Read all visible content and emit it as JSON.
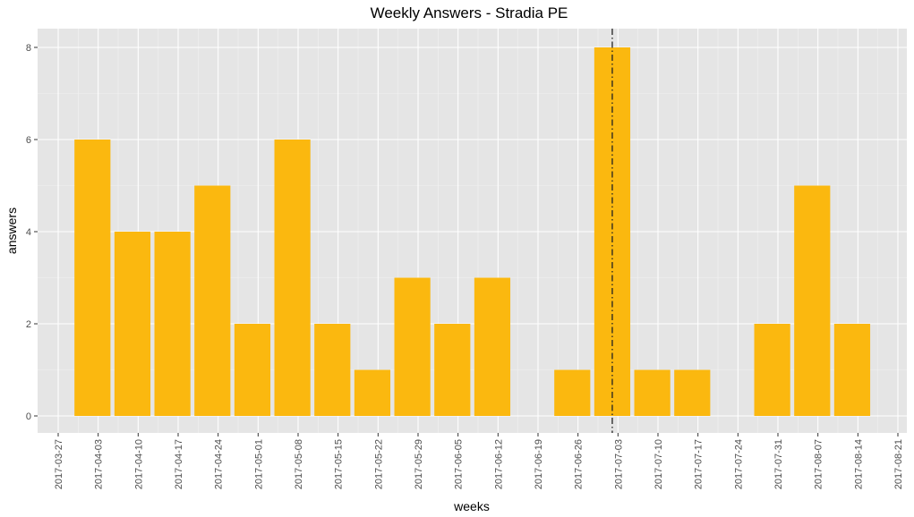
{
  "chart_data": {
    "type": "bar",
    "title": "Weekly Answers - Stradia PE",
    "xlabel": "weeks",
    "ylabel": "answers",
    "ylim": [
      0,
      8
    ],
    "y_ticks": [
      0,
      2,
      4,
      6,
      8
    ],
    "x_ticks": [
      "2017-03-27",
      "2017-04-03",
      "2017-04-10",
      "2017-04-17",
      "2017-04-24",
      "2017-05-01",
      "2017-05-08",
      "2017-05-15",
      "2017-05-22",
      "2017-05-29",
      "2017-06-05",
      "2017-06-12",
      "2017-06-19",
      "2017-06-26",
      "2017-07-03",
      "2017-07-10",
      "2017-07-17",
      "2017-07-24",
      "2017-07-31",
      "2017-08-07",
      "2017-08-14",
      "2017-08-21"
    ],
    "categories": [
      "2017-04-02",
      "2017-04-09",
      "2017-04-16",
      "2017-04-23",
      "2017-04-30",
      "2017-05-07",
      "2017-05-14",
      "2017-05-21",
      "2017-05-28",
      "2017-06-04",
      "2017-06-11",
      "2017-06-25",
      "2017-07-02",
      "2017-07-09",
      "2017-07-16",
      "2017-07-30",
      "2017-08-06",
      "2017-08-13"
    ],
    "values": [
      6,
      4,
      4,
      5,
      2,
      6,
      2,
      1,
      3,
      2,
      3,
      1,
      8,
      1,
      1,
      2,
      5,
      2
    ],
    "vline": "2017-07-02",
    "bar_color": "#FBB80F",
    "panel_color": "#E5E5E5",
    "grid": true,
    "legend": "none"
  }
}
